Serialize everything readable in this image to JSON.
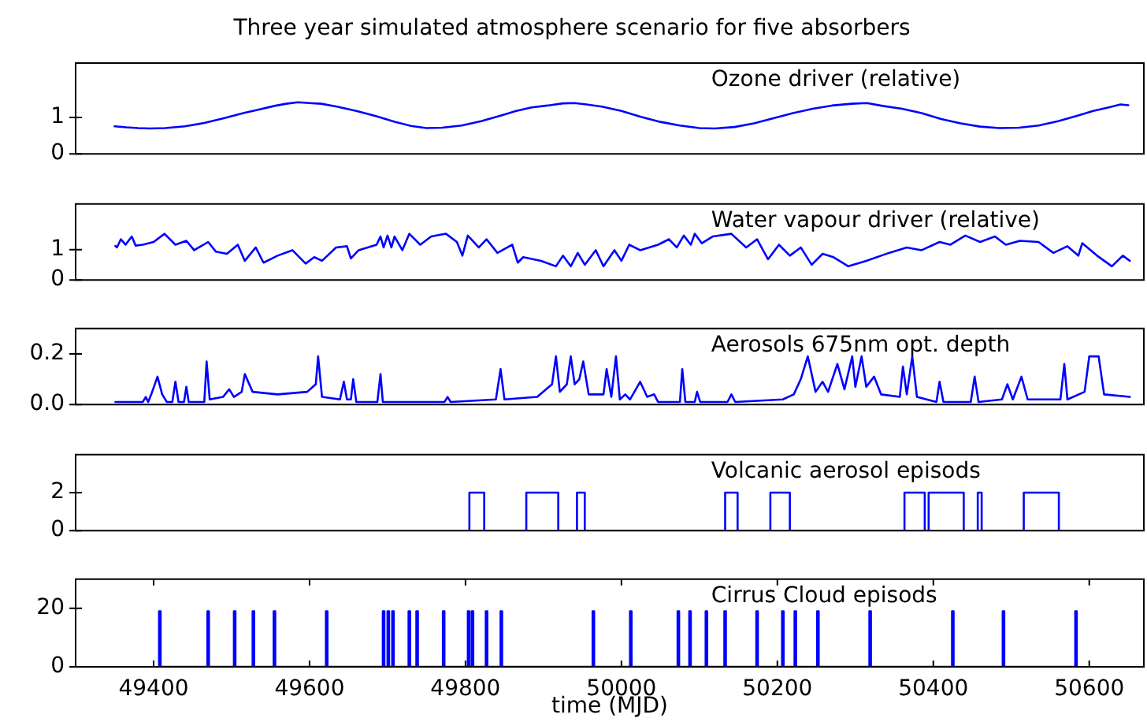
{
  "chart_data": [
    {
      "type": "line",
      "title": "Three year simulated atmosphere scenario for five absorbers",
      "annotations": [
        "Ozone driver (relative)"
      ],
      "color": "#0000ff",
      "tick_labels": "y",
      "xlim": [
        49300,
        50670
      ],
      "ylim": [
        0,
        2.5
      ],
      "yticks": [
        0,
        1
      ],
      "x": [
        49350,
        49365,
        49380,
        49395,
        49415,
        49440,
        49465,
        49490,
        49515,
        49535,
        49555,
        49570,
        49585,
        49600,
        49615,
        49635,
        49660,
        49685,
        49710,
        49730,
        49750,
        49770,
        49795,
        49820,
        49845,
        49865,
        49885,
        49905,
        49925,
        49940,
        49955,
        49975,
        50000,
        50025,
        50050,
        50075,
        50100,
        50120,
        50145,
        50170,
        50195,
        50220,
        50245,
        50270,
        50295,
        50315,
        50335,
        50360,
        50385,
        50410,
        50435,
        50460,
        50485,
        50510,
        50535,
        50560,
        50585,
        50605,
        50625,
        50640,
        50650
      ],
      "values": [
        0.76,
        0.73,
        0.71,
        0.7,
        0.71,
        0.76,
        0.85,
        0.98,
        1.12,
        1.22,
        1.32,
        1.38,
        1.42,
        1.4,
        1.38,
        1.3,
        1.18,
        1.04,
        0.88,
        0.77,
        0.71,
        0.72,
        0.78,
        0.9,
        1.05,
        1.18,
        1.28,
        1.33,
        1.39,
        1.4,
        1.36,
        1.3,
        1.18,
        1.02,
        0.88,
        0.78,
        0.71,
        0.7,
        0.74,
        0.84,
        0.98,
        1.12,
        1.24,
        1.33,
        1.38,
        1.4,
        1.32,
        1.24,
        1.12,
        0.96,
        0.84,
        0.75,
        0.71,
        0.72,
        0.78,
        0.9,
        1.05,
        1.18,
        1.28,
        1.36,
        1.34
      ]
    },
    {
      "type": "line",
      "annotations": [
        "Water vapour driver (relative)"
      ],
      "color": "#0000ff",
      "tick_labels": "y",
      "xlim": [
        49300,
        50670
      ],
      "ylim": [
        0,
        2.5
      ],
      "yticks": [
        0,
        1
      ],
      "x": [
        49351,
        49353,
        49358,
        49364,
        49372,
        49377,
        49386,
        49400,
        49414,
        49428,
        49442,
        49452,
        49470,
        49480,
        49494,
        49508,
        49517,
        49531,
        49541,
        49559,
        49578,
        49595,
        49606,
        49616,
        49634,
        49648,
        49653,
        49663,
        49686,
        49691,
        49695,
        49700,
        49705,
        49709,
        49719,
        49728,
        49742,
        49756,
        49775,
        49789,
        49796,
        49803,
        49817,
        49827,
        49841,
        49860,
        49867,
        49874,
        49897,
        49916,
        49925,
        49935,
        49944,
        49953,
        49967,
        49977,
        49991,
        50000,
        50010,
        50024,
        50047,
        50061,
        50071,
        50080,
        50089,
        50094,
        50103,
        50117,
        50141,
        50160,
        50174,
        50188,
        50202,
        50216,
        50230,
        50244,
        50258,
        50272,
        50291,
        50314,
        50343,
        50366,
        50385,
        50408,
        50422,
        50441,
        50460,
        50479,
        50493,
        50511,
        50535,
        50554,
        50572,
        50586,
        50591,
        50610,
        50629,
        50643,
        50652
      ],
      "values": [
        1.12,
        1.07,
        1.34,
        1.16,
        1.43,
        1.13,
        1.16,
        1.25,
        1.52,
        1.16,
        1.29,
        0.98,
        1.25,
        0.93,
        0.86,
        1.16,
        0.63,
        1.07,
        0.57,
        0.8,
        0.98,
        0.54,
        0.75,
        0.63,
        1.07,
        1.11,
        0.71,
        0.98,
        1.16,
        1.43,
        1.07,
        1.46,
        1.07,
        1.43,
        0.98,
        1.52,
        1.16,
        1.43,
        1.52,
        1.25,
        0.8,
        1.46,
        1.07,
        1.34,
        0.89,
        1.16,
        0.57,
        0.75,
        0.63,
        0.45,
        0.8,
        0.45,
        0.89,
        0.5,
        0.98,
        0.45,
        0.98,
        0.63,
        1.16,
        0.98,
        1.16,
        1.34,
        1.07,
        1.46,
        1.16,
        1.52,
        1.21,
        1.43,
        1.52,
        1.07,
        1.34,
        0.68,
        1.16,
        0.8,
        1.07,
        0.5,
        0.86,
        0.75,
        0.45,
        0.63,
        0.89,
        1.07,
        0.98,
        1.25,
        1.16,
        1.46,
        1.25,
        1.43,
        1.16,
        1.29,
        1.25,
        0.89,
        1.11,
        0.8,
        1.21,
        0.8,
        0.45,
        0.8,
        0.63
      ]
    },
    {
      "type": "line",
      "annotations": [
        "Aerosols 675nm opt. depth"
      ],
      "color": "#0000ff",
      "tick_labels": "y",
      "xlim": [
        49300,
        50670
      ],
      "ylim": [
        0,
        0.3
      ],
      "yticks": [
        {
          "value": 0,
          "label": "0.0"
        },
        0.2
      ],
      "x": [
        49351,
        49386,
        49390,
        49393,
        49397,
        49405,
        49411,
        49417,
        49424,
        49428,
        49432,
        49439,
        49442,
        49445,
        49465,
        49468,
        49472,
        49489,
        49497,
        49503,
        49513,
        49517,
        49527,
        49559,
        49597,
        49608,
        49611,
        49616,
        49639,
        49644,
        49648,
        49653,
        49656,
        49660,
        49687,
        49691,
        49694,
        49773,
        49777,
        49781,
        49839,
        49845,
        49850,
        49892,
        49911,
        49916,
        49921,
        49930,
        49935,
        49940,
        49946,
        49951,
        49958,
        49977,
        49981,
        49987,
        49993,
        49998,
        50005,
        50011,
        50024,
        50033,
        50042,
        50047,
        50075,
        50078,
        50082,
        50094,
        50097,
        50101,
        50136,
        50141,
        50146,
        50207,
        50221,
        50230,
        50239,
        50249,
        50258,
        50265,
        50277,
        50286,
        50296,
        50300,
        50308,
        50314,
        50324,
        50333,
        50357,
        50361,
        50366,
        50373,
        50379,
        50404,
        50408,
        50413,
        50448,
        50453,
        50458,
        50488,
        50495,
        50502,
        50513,
        50521,
        50563,
        50568,
        50572,
        50594,
        50600,
        50612,
        50619,
        50652
      ],
      "values": [
        0.01,
        0.01,
        0.03,
        0.01,
        0.04,
        0.11,
        0.04,
        0.01,
        0.01,
        0.09,
        0.01,
        0.01,
        0.07,
        0.01,
        0.01,
        0.17,
        0.02,
        0.03,
        0.06,
        0.03,
        0.05,
        0.12,
        0.05,
        0.04,
        0.05,
        0.08,
        0.19,
        0.03,
        0.02,
        0.09,
        0.02,
        0.02,
        0.1,
        0.01,
        0.01,
        0.12,
        0.01,
        0.01,
        0.03,
        0.01,
        0.02,
        0.14,
        0.02,
        0.03,
        0.08,
        0.19,
        0.05,
        0.08,
        0.19,
        0.08,
        0.1,
        0.17,
        0.04,
        0.04,
        0.14,
        0.03,
        0.19,
        0.02,
        0.04,
        0.02,
        0.09,
        0.03,
        0.04,
        0.01,
        0.01,
        0.14,
        0.01,
        0.01,
        0.05,
        0.01,
        0.01,
        0.04,
        0.01,
        0.02,
        0.04,
        0.1,
        0.19,
        0.05,
        0.09,
        0.05,
        0.16,
        0.06,
        0.19,
        0.07,
        0.19,
        0.07,
        0.11,
        0.04,
        0.03,
        0.15,
        0.04,
        0.19,
        0.03,
        0.01,
        0.09,
        0.01,
        0.01,
        0.11,
        0.01,
        0.02,
        0.08,
        0.02,
        0.11,
        0.02,
        0.02,
        0.16,
        0.02,
        0.05,
        0.19,
        0.19,
        0.04,
        0.03
      ]
    },
    {
      "type": "step",
      "annotations": [
        "Volcanic aerosol episods"
      ],
      "color": "#0000ff",
      "tick_labels": "y",
      "xlim": [
        49300,
        50670
      ],
      "ylim": [
        0,
        4
      ],
      "yticks": [
        0,
        2
      ],
      "x": [
        49804,
        49805,
        49824,
        49878,
        49919,
        49943,
        49953,
        50133,
        50149,
        50191,
        50216,
        50363,
        50389,
        50394,
        50439,
        50457,
        50462,
        50516,
        50561
      ],
      "values": [
        0,
        2,
        0,
        2,
        0,
        2,
        0,
        2,
        0,
        2,
        0,
        2,
        0,
        2,
        0,
        2,
        0,
        2,
        0
      ]
    },
    {
      "type": "step",
      "annotations": [
        "Cirrus Cloud episods"
      ],
      "xlabel": "time (MJD)",
      "color": "#0000ff",
      "xlim": [
        49300,
        50670
      ],
      "xticks": [
        49400,
        49600,
        49800,
        50000,
        50200,
        50400,
        50600
      ],
      "ylim": [
        0,
        30
      ],
      "yticks": [
        0,
        20
      ],
      "x": [
        49406,
        49407,
        49409,
        49469,
        49471,
        49503,
        49505,
        49527,
        49529,
        49554,
        49556,
        49621,
        49623,
        49694,
        49696,
        49700,
        49702,
        49706,
        49708,
        49727,
        49729,
        49737,
        49739,
        49771,
        49773,
        49803,
        49805,
        49808,
        49810,
        49826,
        49828,
        49845,
        49847,
        49963,
        49965,
        50011,
        50013,
        50072,
        50074,
        50087,
        50089,
        50108,
        50110,
        50132,
        50134,
        50173,
        50175,
        50206,
        50208,
        50222,
        50224,
        50251,
        50253,
        50318,
        50320,
        50424,
        50426,
        50489,
        50491,
        50582,
        50584
      ],
      "values": [
        0,
        19,
        0,
        19,
        0,
        19,
        0,
        19,
        0,
        19,
        0,
        19,
        0,
        19,
        0,
        19,
        0,
        19,
        0,
        19,
        0,
        19,
        0,
        19,
        0,
        19,
        0,
        19,
        0,
        19,
        0,
        19,
        0,
        19,
        0,
        19,
        0,
        19,
        0,
        19,
        0,
        19,
        0,
        19,
        0,
        19,
        0,
        19,
        0,
        19,
        0,
        19,
        0,
        19,
        0,
        19,
        0,
        19,
        0,
        19,
        0
      ]
    }
  ]
}
